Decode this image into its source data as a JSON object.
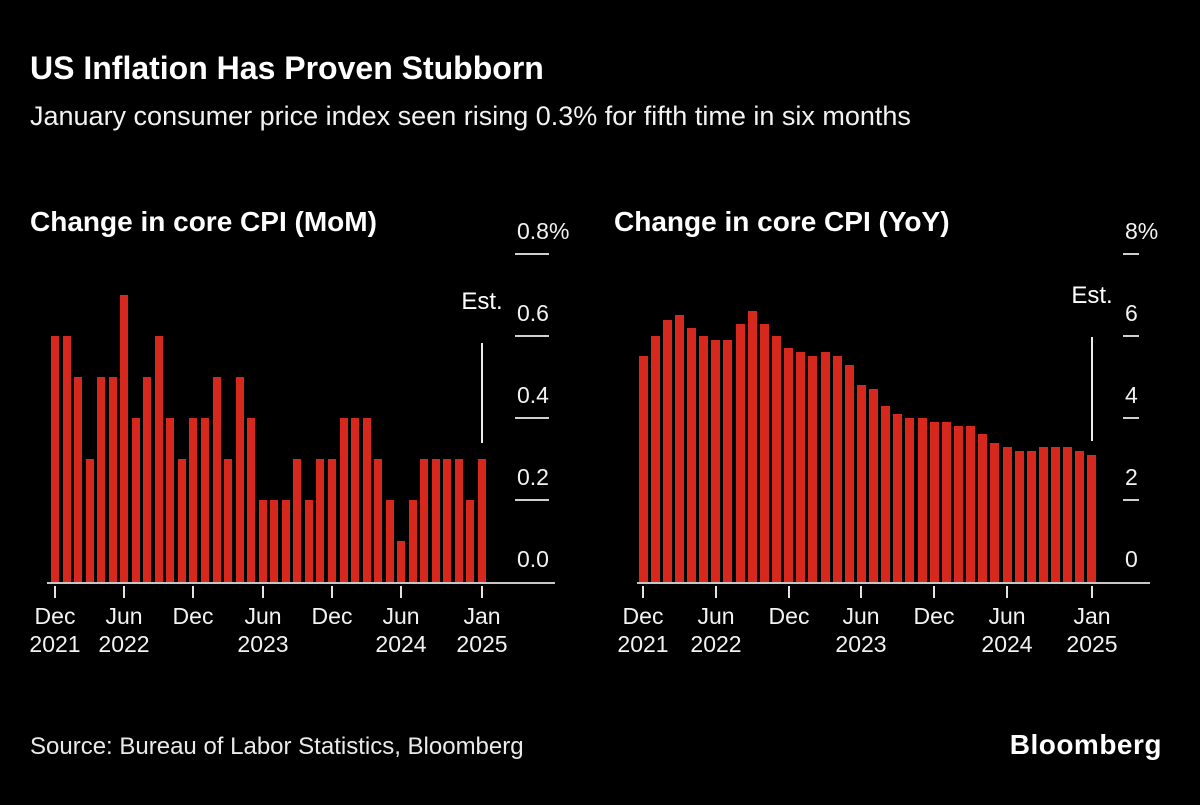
{
  "page": {
    "title": "US Inflation Has Proven Stubborn",
    "subtitle": "January consumer price index seen rising 0.3% for fifth time in six months",
    "source": "Source: Bureau of Labor Statistics, Bloomberg",
    "brand": "Bloomberg"
  },
  "colors": {
    "background": "#000000",
    "bar": "#d7281e",
    "text": "#f2f2f2",
    "axis_line": "#c6c6c6",
    "tick_dash": "#cfcfcf",
    "tick_mark": "#e3e3e3",
    "est_line": "#ececec"
  },
  "chart_data": [
    {
      "id": "core-cpi-mom",
      "type": "bar",
      "title": "Change in core CPI (MoM)",
      "unit": "percent",
      "ylim": [
        0,
        0.8
      ],
      "grid": false,
      "legend": "none",
      "categories": [
        "Dec 2021",
        "Jan 2022",
        "Feb 2022",
        "Mar 2022",
        "Apr 2022",
        "May 2022",
        "Jun 2022",
        "Jul 2022",
        "Aug 2022",
        "Sep 2022",
        "Oct 2022",
        "Nov 2022",
        "Dec 2022",
        "Jan 2023",
        "Feb 2023",
        "Mar 2023",
        "Apr 2023",
        "May 2023",
        "Jun 2023",
        "Jul 2023",
        "Aug 2023",
        "Sep 2023",
        "Oct 2023",
        "Nov 2023",
        "Dec 2023",
        "Jan 2024",
        "Feb 2024",
        "Mar 2024",
        "Apr 2024",
        "May 2024",
        "Jun 2024",
        "Jul 2024",
        "Aug 2024",
        "Sep 2024",
        "Oct 2024",
        "Nov 2024",
        "Dec 2024",
        "Jan 2025"
      ],
      "values": [
        0.6,
        0.6,
        0.5,
        0.3,
        0.5,
        0.5,
        0.7,
        0.4,
        0.5,
        0.6,
        0.4,
        0.3,
        0.4,
        0.4,
        0.5,
        0.3,
        0.5,
        0.4,
        0.2,
        0.2,
        0.2,
        0.3,
        0.2,
        0.3,
        0.3,
        0.4,
        0.4,
        0.4,
        0.3,
        0.2,
        0.1,
        0.2,
        0.3,
        0.3,
        0.3,
        0.3,
        0.2,
        0.3
      ],
      "est_annotation": {
        "label": "Est.",
        "category": "Jan 2025",
        "value": 0.3
      },
      "y_ticks": [
        {
          "label": "0.8%",
          "value": 0.8
        },
        {
          "label": "0.6",
          "value": 0.6
        },
        {
          "label": "0.4",
          "value": 0.4
        },
        {
          "label": "0.2",
          "value": 0.2
        },
        {
          "label": "0.0",
          "value": 0.0
        }
      ],
      "x_ticks": [
        {
          "index": 0,
          "line1": "Dec",
          "line2": "2021"
        },
        {
          "index": 6,
          "line1": "Jun",
          "line2": "2022"
        },
        {
          "index": 12,
          "line1": "Dec",
          "line2": ""
        },
        {
          "index": 18,
          "line1": "Jun",
          "line2": "2023"
        },
        {
          "index": 24,
          "line1": "Dec",
          "line2": ""
        },
        {
          "index": 30,
          "line1": "Jun",
          "line2": "2024"
        },
        {
          "index": 37,
          "line1": "Jan",
          "line2": "2025"
        }
      ]
    },
    {
      "id": "core-cpi-yoy",
      "type": "bar",
      "title": "Change in core CPI (YoY)",
      "unit": "percent",
      "ylim": [
        0,
        8
      ],
      "grid": false,
      "legend": "none",
      "categories": [
        "Dec 2021",
        "Jan 2022",
        "Feb 2022",
        "Mar 2022",
        "Apr 2022",
        "May 2022",
        "Jun 2022",
        "Jul 2022",
        "Aug 2022",
        "Sep 2022",
        "Oct 2022",
        "Nov 2022",
        "Dec 2022",
        "Jan 2023",
        "Feb 2023",
        "Mar 2023",
        "Apr 2023",
        "May 2023",
        "Jun 2023",
        "Jul 2023",
        "Aug 2023",
        "Sep 2023",
        "Oct 2023",
        "Nov 2023",
        "Dec 2023",
        "Jan 2024",
        "Feb 2024",
        "Mar 2024",
        "Apr 2024",
        "May 2024",
        "Jun 2024",
        "Jul 2024",
        "Aug 2024",
        "Sep 2024",
        "Oct 2024",
        "Nov 2024",
        "Dec 2024",
        "Jan 2025"
      ],
      "values": [
        5.5,
        6.0,
        6.4,
        6.5,
        6.2,
        6.0,
        5.9,
        5.9,
        6.3,
        6.6,
        6.3,
        6.0,
        5.7,
        5.6,
        5.5,
        5.6,
        5.5,
        5.3,
        4.8,
        4.7,
        4.3,
        4.1,
        4.0,
        4.0,
        3.9,
        3.9,
        3.8,
        3.8,
        3.6,
        3.4,
        3.3,
        3.2,
        3.2,
        3.3,
        3.3,
        3.3,
        3.2,
        3.1
      ],
      "est_annotation": {
        "label": "Est.",
        "category": "Jan 2025",
        "value": 3.1
      },
      "y_ticks": [
        {
          "label": "8%",
          "value": 8
        },
        {
          "label": "6",
          "value": 6
        },
        {
          "label": "4",
          "value": 4
        },
        {
          "label": "2",
          "value": 2
        },
        {
          "label": "0",
          "value": 0
        }
      ],
      "x_ticks": [
        {
          "index": 0,
          "line1": "Dec",
          "line2": "2021"
        },
        {
          "index": 6,
          "line1": "Jun",
          "line2": "2022"
        },
        {
          "index": 12,
          "line1": "Dec",
          "line2": ""
        },
        {
          "index": 18,
          "line1": "Jun",
          "line2": "2023"
        },
        {
          "index": 24,
          "line1": "Dec",
          "line2": ""
        },
        {
          "index": 30,
          "line1": "Jun",
          "line2": "2024"
        },
        {
          "index": 37,
          "line1": "Jan",
          "line2": "2025"
        }
      ]
    }
  ]
}
